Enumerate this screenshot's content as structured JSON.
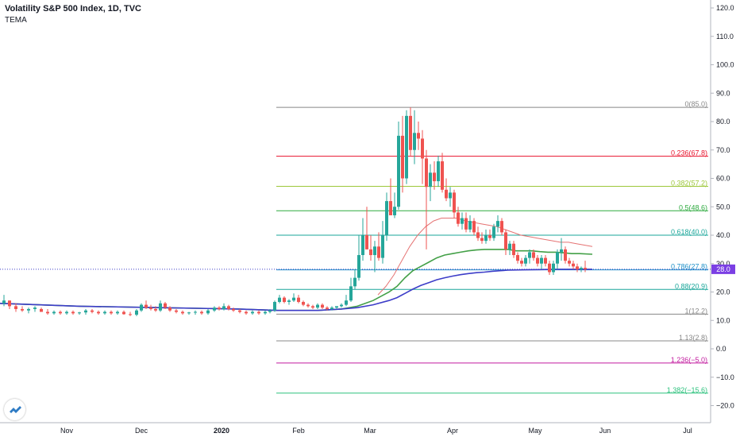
{
  "header": {
    "title": "Volatility S&P 500 Index, 1D, TVC",
    "indicator": "TEMA"
  },
  "colors": {
    "up": "#26a69a",
    "down": "#ef5350",
    "price_line": "#3d3dc8",
    "badge": "#7b3fe4"
  },
  "chart_data": {
    "type": "candlestick",
    "title": "Volatility S&P 500 Index, 1D, TVC",
    "xlabel": "",
    "ylabel": "",
    "ylim": [
      -23,
      124
    ],
    "y_ticks": [
      "120.0",
      "110.0",
      "100.0",
      "90.0",
      "80.0",
      "70.0",
      "60.0",
      "50.0",
      "40.0",
      "30.0",
      "20.0",
      "10.0",
      "0.0",
      "−10.0",
      "−20.0"
    ],
    "x_ticks": [
      "Nov",
      "Dec",
      "2020",
      "Feb",
      "Mar",
      "Apr",
      "May",
      "Jun",
      "Jul"
    ],
    "last_price": 28.0,
    "last_price_label": "28.0",
    "fib_levels": [
      {
        "label": "0(85.0)",
        "value": 85.0,
        "color": "#888888"
      },
      {
        "label": "0.236(67.8)",
        "value": 67.8,
        "color": "#e8132c"
      },
      {
        "label": "0.382(57.2)",
        "value": 57.2,
        "color": "#9dc73a"
      },
      {
        "label": "0.5(48.6)",
        "value": 48.6,
        "color": "#2eaa3f"
      },
      {
        "label": "0.618(40.0)",
        "value": 40.0,
        "color": "#1aa69a"
      },
      {
        "label": "0.786(27.8)",
        "value": 27.8,
        "color": "#1e90c8"
      },
      {
        "label": "0.88(20.9)",
        "value": 20.9,
        "color": "#1aa69a"
      },
      {
        "label": "1(12.2)",
        "value": 12.2,
        "color": "#888888"
      },
      {
        "label": "1.13(2.8)",
        "value": 2.8,
        "color": "#888888"
      },
      {
        "label": "1.236(−5.0)",
        "value": -5.0,
        "color": "#c21b9f"
      },
      {
        "label": "1.382(−15.6)",
        "value": -15.6,
        "color": "#2ec27e"
      }
    ],
    "series": [
      {
        "type": "line",
        "color": "#e57373",
        "points": [
          [
            476,
            19
          ],
          [
            486,
            22
          ],
          [
            496,
            26
          ],
          [
            506,
            31
          ],
          [
            516,
            36
          ],
          [
            526,
            40
          ],
          [
            536,
            43
          ],
          [
            546,
            45
          ],
          [
            556,
            46
          ],
          [
            566,
            46
          ],
          [
            576,
            46
          ],
          [
            586,
            45
          ],
          [
            596,
            44.5
          ],
          [
            606,
            44
          ],
          [
            616,
            43.5
          ],
          [
            626,
            43
          ],
          [
            636,
            42
          ],
          [
            646,
            41
          ],
          [
            656,
            40
          ],
          [
            666,
            39.5
          ],
          [
            676,
            39
          ],
          [
            686,
            38.5
          ],
          [
            696,
            38
          ],
          [
            706,
            37.5
          ],
          [
            716,
            37.5
          ],
          [
            726,
            37
          ],
          [
            736,
            36.5
          ],
          [
            746,
            36
          ]
        ]
      },
      {
        "type": "line",
        "color": "#43a047",
        "points": [
          [
            0,
            16
          ],
          [
            100,
            15
          ],
          [
            200,
            14.5
          ],
          [
            300,
            14
          ],
          [
            350,
            13.5
          ],
          [
            400,
            13.5
          ],
          [
            430,
            14
          ],
          [
            450,
            15
          ],
          [
            470,
            17
          ],
          [
            490,
            20
          ],
          [
            500,
            22
          ],
          [
            510,
            25
          ],
          [
            520,
            27.5
          ],
          [
            530,
            29
          ],
          [
            540,
            30.5
          ],
          [
            550,
            32
          ],
          [
            560,
            33
          ],
          [
            570,
            33.5
          ],
          [
            580,
            34
          ],
          [
            590,
            34.5
          ],
          [
            600,
            34.8
          ],
          [
            610,
            35
          ],
          [
            620,
            35
          ],
          [
            630,
            35
          ],
          [
            640,
            35
          ],
          [
            650,
            34.5
          ],
          [
            660,
            34.5
          ],
          [
            670,
            34.5
          ],
          [
            680,
            34.2
          ],
          [
            690,
            34
          ],
          [
            700,
            34
          ],
          [
            710,
            33.8
          ],
          [
            720,
            33.5
          ],
          [
            730,
            33.5
          ],
          [
            746,
            33.3
          ]
        ]
      },
      {
        "type": "line",
        "color": "#3d3dc8",
        "points": [
          [
            0,
            16
          ],
          [
            100,
            15
          ],
          [
            200,
            14.5
          ],
          [
            300,
            14
          ],
          [
            350,
            13.5
          ],
          [
            400,
            13.5
          ],
          [
            430,
            14
          ],
          [
            450,
            14.5
          ],
          [
            470,
            15.5
          ],
          [
            490,
            17
          ],
          [
            500,
            18
          ],
          [
            510,
            19.5
          ],
          [
            520,
            21
          ],
          [
            530,
            22.3
          ],
          [
            540,
            23.3
          ],
          [
            550,
            24.3
          ],
          [
            560,
            25
          ],
          [
            570,
            25.6
          ],
          [
            580,
            26.1
          ],
          [
            590,
            26.5
          ],
          [
            600,
            26.8
          ],
          [
            610,
            27
          ],
          [
            620,
            27.3
          ],
          [
            630,
            27.5
          ],
          [
            640,
            27.7
          ],
          [
            660,
            27.8
          ],
          [
            680,
            27.9
          ],
          [
            700,
            28
          ],
          [
            746,
            28
          ]
        ]
      }
    ],
    "candles": [
      [
        5,
        16,
        19,
        15,
        17
      ],
      [
        12,
        17,
        17,
        14,
        15
      ],
      [
        20,
        15,
        16,
        13,
        14
      ],
      [
        28,
        14,
        15,
        13,
        13.5
      ],
      [
        36,
        13.5,
        14.5,
        12.5,
        14
      ],
      [
        44,
        14,
        15,
        13,
        14.5
      ],
      [
        52,
        14,
        14.5,
        13,
        13
      ],
      [
        60,
        13,
        14,
        12,
        12.5
      ],
      [
        68,
        12.5,
        13.5,
        12,
        13
      ],
      [
        76,
        13,
        13.5,
        12,
        12.5
      ],
      [
        84,
        12.5,
        13.5,
        12,
        13
      ],
      [
        92,
        13,
        13.5,
        12,
        12.5
      ],
      [
        100,
        12.5,
        13,
        12,
        12.8
      ],
      [
        108,
        12.8,
        14,
        12,
        13.5
      ],
      [
        116,
        13.5,
        14,
        12.5,
        13
      ],
      [
        124,
        13,
        13.5,
        12,
        12.5
      ],
      [
        132,
        12.5,
        13.5,
        12,
        13
      ],
      [
        140,
        13,
        13.5,
        12,
        12.5
      ],
      [
        148,
        12.5,
        13.5,
        12,
        13
      ],
      [
        156,
        13,
        13.5,
        12,
        12.2
      ],
      [
        164,
        12.2,
        13,
        11.5,
        12
      ],
      [
        172,
        12,
        14,
        11.5,
        13.5
      ],
      [
        178,
        13.5,
        16,
        13,
        15.5
      ],
      [
        184,
        15.5,
        17,
        14,
        14.5
      ],
      [
        190,
        14.5,
        15.5,
        13.5,
        14
      ],
      [
        196,
        14,
        15,
        13,
        13.5
      ],
      [
        202,
        13.5,
        17,
        13,
        16
      ],
      [
        208,
        16,
        16.5,
        14,
        14.5
      ],
      [
        214,
        14.5,
        15,
        13,
        13.5
      ],
      [
        222,
        13.5,
        14,
        12.5,
        13
      ],
      [
        230,
        13,
        13.5,
        12,
        12.5
      ],
      [
        238,
        12.5,
        13,
        12,
        12.8
      ],
      [
        246,
        12.8,
        13.5,
        12,
        13
      ],
      [
        254,
        13,
        13.5,
        12,
        12.5
      ],
      [
        262,
        12.5,
        14,
        12,
        13.5
      ],
      [
        270,
        13.5,
        15,
        13,
        14.5
      ],
      [
        276,
        14.5,
        15,
        13.5,
        14
      ],
      [
        282,
        14,
        16,
        13.5,
        15
      ],
      [
        288,
        15,
        15.5,
        13.5,
        14
      ],
      [
        294,
        14,
        14.5,
        13,
        13.5
      ],
      [
        302,
        13.5,
        14,
        12.5,
        13
      ],
      [
        310,
        13,
        13.5,
        12,
        12.5
      ],
      [
        318,
        12.5,
        13.5,
        12,
        13
      ],
      [
        326,
        13,
        13.5,
        12,
        12.5
      ],
      [
        334,
        12.5,
        13.5,
        12,
        13
      ],
      [
        340,
        13,
        14,
        12.5,
        13.5
      ],
      [
        346,
        13.5,
        17,
        13,
        16.5
      ],
      [
        352,
        16.5,
        19,
        16,
        18
      ],
      [
        358,
        18,
        18.5,
        16,
        16.5
      ],
      [
        364,
        16.5,
        17.5,
        15.5,
        17
      ],
      [
        370,
        17,
        19.5,
        16.5,
        18
      ],
      [
        376,
        18,
        19,
        16,
        16.5
      ],
      [
        382,
        16.5,
        17,
        15,
        15.5
      ],
      [
        388,
        15.5,
        16,
        14.5,
        15
      ],
      [
        394,
        15,
        15.5,
        14,
        14.5
      ],
      [
        400,
        14.5,
        16,
        14,
        15.5
      ],
      [
        406,
        15.5,
        16,
        14,
        14.5
      ],
      [
        412,
        14.5,
        15,
        13.5,
        14
      ],
      [
        418,
        14,
        15,
        13.5,
        14.5
      ],
      [
        424,
        14.5,
        15,
        14,
        15
      ],
      [
        430,
        15,
        16,
        14.5,
        15.5
      ],
      [
        436,
        15.5,
        19,
        15,
        17
      ],
      [
        442,
        17,
        25,
        16.5,
        22
      ],
      [
        447,
        22,
        28,
        21,
        25
      ],
      [
        452,
        25,
        40,
        24,
        33
      ],
      [
        457,
        33,
        46,
        31,
        40
      ],
      [
        462,
        40,
        50,
        35,
        35
      ],
      [
        467,
        35,
        40,
        31,
        33
      ],
      [
        472,
        33,
        38,
        27,
        36
      ],
      [
        477,
        36,
        41,
        31,
        32
      ],
      [
        482,
        32,
        45,
        30,
        40
      ],
      [
        487,
        40,
        55,
        38,
        52
      ],
      [
        492,
        52,
        60,
        48,
        47
      ],
      [
        497,
        47,
        55,
        46,
        50
      ],
      [
        502,
        50,
        80,
        49,
        75
      ],
      [
        507,
        75,
        82,
        55,
        60
      ],
      [
        512,
        60,
        84,
        58,
        82
      ],
      [
        517,
        82,
        85,
        68,
        70
      ],
      [
        522,
        70,
        84,
        65,
        76
      ],
      [
        527,
        76,
        80,
        70,
        74
      ],
      [
        532,
        74,
        77,
        58,
        67
      ],
      [
        537,
        67,
        70,
        35,
        57
      ],
      [
        542,
        57,
        65,
        52,
        62
      ],
      [
        547,
        62,
        66,
        56,
        59
      ],
      [
        552,
        59,
        68,
        57,
        66
      ],
      [
        557,
        66,
        69,
        55,
        56
      ],
      [
        562,
        56,
        60,
        52,
        53
      ],
      [
        567,
        53,
        57,
        50,
        55
      ],
      [
        572,
        55,
        56,
        46,
        48
      ],
      [
        577,
        48,
        50,
        43,
        44
      ],
      [
        582,
        44,
        48,
        42,
        46
      ],
      [
        587,
        46,
        48,
        41,
        42
      ],
      [
        592,
        42,
        47,
        41,
        45
      ],
      [
        597,
        45,
        46,
        40,
        41
      ],
      [
        602,
        41,
        43,
        38,
        39
      ],
      [
        607,
        39,
        41,
        37,
        38
      ],
      [
        612,
        38,
        42,
        37,
        40
      ],
      [
        617,
        40,
        42,
        38,
        39
      ],
      [
        622,
        39,
        44,
        38,
        43
      ],
      [
        627,
        43,
        47,
        41,
        45
      ],
      [
        632,
        45,
        46,
        40,
        41
      ],
      [
        637,
        41,
        42,
        33,
        35
      ],
      [
        642,
        35,
        38,
        33,
        37
      ],
      [
        647,
        37,
        38,
        32,
        33
      ],
      [
        652,
        33,
        34,
        30,
        31
      ],
      [
        657,
        31,
        32,
        29,
        30
      ],
      [
        662,
        30,
        33,
        29,
        32
      ],
      [
        667,
        32,
        35,
        30,
        34
      ],
      [
        672,
        34,
        35,
        31,
        32
      ],
      [
        677,
        32,
        33,
        29,
        30
      ],
      [
        682,
        30,
        33,
        28,
        32
      ],
      [
        687,
        32,
        33,
        29,
        30
      ],
      [
        692,
        30,
        31,
        26,
        27
      ],
      [
        697,
        27,
        31,
        26,
        30
      ],
      [
        702,
        30,
        35,
        28,
        34
      ],
      [
        707,
        34,
        39,
        31,
        35
      ],
      [
        712,
        35,
        36,
        30,
        31
      ],
      [
        717,
        31,
        32,
        29,
        30
      ],
      [
        722,
        30,
        31,
        28,
        29
      ],
      [
        727,
        29,
        30,
        27,
        28
      ],
      [
        732,
        28,
        29,
        27,
        28.5
      ],
      [
        737,
        28.5,
        31,
        27,
        28
      ]
    ]
  }
}
